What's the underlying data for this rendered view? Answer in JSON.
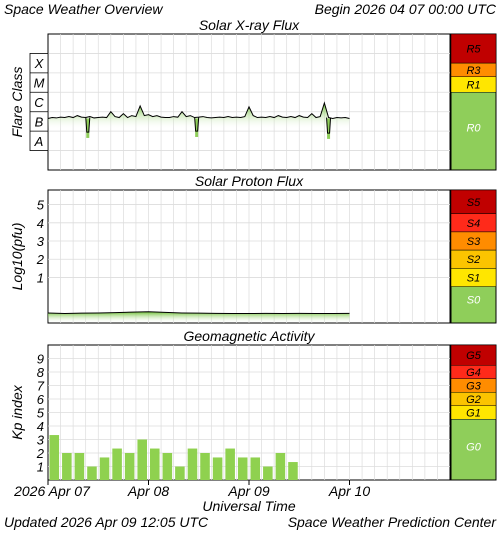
{
  "header": {
    "title": "Space Weather Overview",
    "begin": "Begin 2026 04 07 00:00 UTC"
  },
  "footer": {
    "updated": "Updated 2026 Apr 09 12:05 UTC",
    "center": "Space Weather Prediction Center"
  },
  "colors": {
    "plot_fill": "#8fce5a",
    "trace": "#000000",
    "grid": "#dcdcdc",
    "bar_green": "#8fd14f",
    "scale_green": "#8fce5a",
    "level_yellow": "#ffe600",
    "level_gold": "#fbc400",
    "level_orange": "#ff8c00",
    "level_red": "#ff2a1a",
    "level_darkred": "#c00000"
  },
  "chart_data": [
    {
      "type": "line",
      "title": "Solar X-ray Flux",
      "ylabel": "Flare Class",
      "y_classes": [
        "X",
        "M",
        "C",
        "B",
        "A"
      ],
      "ylim_log10": [
        -9,
        -2
      ],
      "x_unit": "hours since 2026 Apr 07 00:00 UTC",
      "x": [
        0,
        1,
        2,
        3,
        4,
        5,
        6,
        7,
        8,
        9,
        10,
        11,
        12,
        13,
        14,
        15,
        16,
        17,
        18,
        19,
        20,
        21,
        22,
        23,
        24,
        25,
        26,
        27,
        28,
        29,
        30,
        31,
        32,
        33,
        34,
        35,
        36,
        37,
        38,
        39,
        40,
        41,
        42,
        43,
        44,
        45,
        46,
        47,
        48,
        49,
        50,
        51,
        52,
        53,
        54,
        55,
        56,
        57,
        58,
        59,
        60,
        61,
        62,
        63,
        64,
        65,
        66,
        67,
        68,
        69,
        70,
        71,
        72
      ],
      "values_log10": [
        -6.35,
        -6.3,
        -6.32,
        -6.28,
        -6.3,
        -6.25,
        -6.3,
        -6.2,
        -6.28,
        -6.3,
        -6.25,
        -6.32,
        -6.3,
        -6.28,
        -6.3,
        -6.0,
        -6.25,
        -6.3,
        -6.1,
        -6.3,
        -6.2,
        -6.25,
        -5.7,
        -6.2,
        -6.15,
        -6.25,
        -6.2,
        -6.28,
        -6.3,
        -6.3,
        -6.25,
        -6.28,
        -6.0,
        -6.25,
        -6.2,
        -6.3,
        -6.28,
        -6.25,
        -6.3,
        -6.32,
        -6.3,
        -6.28,
        -6.3,
        -6.25,
        -6.3,
        -6.28,
        -6.3,
        -6.25,
        -5.75,
        -6.2,
        -6.3,
        -6.28,
        -6.3,
        -6.25,
        -6.3,
        -6.2,
        -6.28,
        -6.3,
        -6.25,
        -6.3,
        -6.2,
        -6.28,
        -6.3,
        -6.1,
        -6.3,
        -6.25,
        -5.55,
        -6.3,
        -6.35,
        -6.3,
        -6.32,
        -6.3,
        -6.35
      ],
      "dips": [
        {
          "x": 9.5,
          "log10": -7.35
        },
        {
          "x": 35.5,
          "log10": -7.3
        },
        {
          "x": 67.0,
          "log10": -7.4
        }
      ],
      "scale": [
        {
          "label": "R5",
          "color": "level_darkred"
        },
        {
          "label": "R3",
          "color": "level_orange"
        },
        {
          "label": "R1",
          "color": "level_yellow"
        },
        {
          "label": "R0",
          "color": "scale_green"
        }
      ]
    },
    {
      "type": "line",
      "title": "Solar Proton Flux",
      "ylabel": "Log10(pfu)",
      "yticks": [
        1,
        2,
        3,
        4,
        5
      ],
      "ylim": [
        -1.5,
        5.8
      ],
      "x_unit": "hours since 2026 Apr 07 00:00 UTC",
      "x": [
        0,
        4,
        8,
        12,
        16,
        20,
        24,
        28,
        32,
        36,
        40,
        44,
        48,
        52,
        56,
        60,
        64,
        68,
        72
      ],
      "values": [
        -0.95,
        -0.98,
        -0.96,
        -0.95,
        -0.93,
        -0.9,
        -0.88,
        -0.92,
        -0.95,
        -0.96,
        -0.97,
        -0.98,
        -0.98,
        -0.97,
        -0.98,
        -0.97,
        -0.98,
        -0.98,
        -0.97
      ],
      "scale": [
        {
          "label": "S5",
          "color": "level_darkred"
        },
        {
          "label": "S4",
          "color": "level_red"
        },
        {
          "label": "S3",
          "color": "level_orange"
        },
        {
          "label": "S2",
          "color": "level_gold"
        },
        {
          "label": "S1",
          "color": "level_yellow"
        },
        {
          "label": "S0",
          "color": "scale_green"
        }
      ]
    },
    {
      "type": "bar",
      "title": "Geomagnetic Activity",
      "ylabel": "Kp index",
      "yticks": [
        1,
        2,
        3,
        4,
        5,
        6,
        7,
        8,
        9
      ],
      "ylim": [
        0,
        10
      ],
      "x_unit": "hours since 2026 Apr 07 00:00 UTC",
      "bar_hours": 3,
      "values": [
        3.33,
        2.0,
        2.0,
        1.0,
        1.67,
        2.33,
        2.0,
        3.0,
        2.33,
        2.0,
        1.0,
        2.33,
        2.0,
        1.67,
        2.33,
        1.67,
        1.67,
        1.0,
        2.0,
        1.33
      ],
      "scale": [
        {
          "label": "G5",
          "color": "level_darkred"
        },
        {
          "label": "G4",
          "color": "level_red"
        },
        {
          "label": "G3",
          "color": "level_orange"
        },
        {
          "label": "G2",
          "color": "level_gold"
        },
        {
          "label": "G1",
          "color": "level_yellow"
        },
        {
          "label": "G0",
          "color": "scale_green"
        }
      ]
    }
  ],
  "x_axis": {
    "label": "Universal Time",
    "xlim_hours": [
      0,
      96
    ],
    "ticks": [
      {
        "hours": 0,
        "label": "2026 Apr 07"
      },
      {
        "hours": 24,
        "label": "Apr 08"
      },
      {
        "hours": 48,
        "label": "Apr 09"
      },
      {
        "hours": 72,
        "label": "Apr 10"
      }
    ]
  }
}
